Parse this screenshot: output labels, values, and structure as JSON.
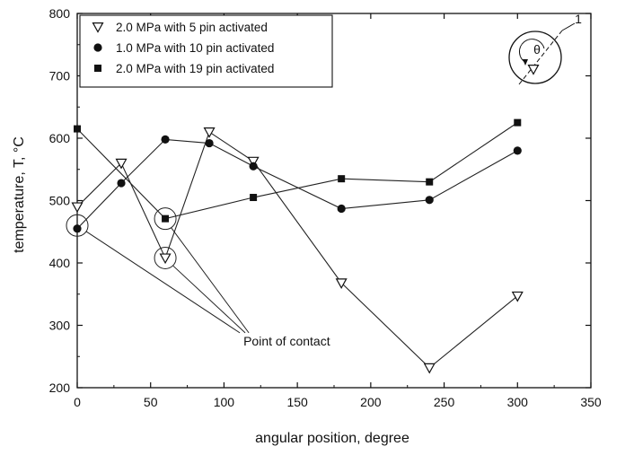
{
  "chart_data": {
    "type": "line",
    "xlabel": "angular position, degree",
    "ylabel": "temperature, T, °C",
    "xlim": [
      0,
      350
    ],
    "ylim": [
      200,
      800
    ],
    "xticks": [
      0,
      50,
      100,
      150,
      200,
      250,
      300,
      350
    ],
    "yticks": [
      200,
      300,
      400,
      500,
      600,
      700,
      800
    ],
    "grid": false,
    "legend_position": "top-left",
    "series": [
      {
        "name": "2.0 MPa with 5 pin activated",
        "marker": "triangle-down-open",
        "x": [
          0,
          30,
          60,
          90,
          120,
          180,
          240,
          300
        ],
        "y": [
          490,
          560,
          408,
          610,
          563,
          368,
          232,
          347
        ]
      },
      {
        "name": "1.0 MPa with 10 pin activated",
        "marker": "circle-filled",
        "x": [
          0,
          30,
          60,
          90,
          120,
          180,
          240,
          300
        ],
        "y": [
          455,
          528,
          598,
          592,
          555,
          487,
          501,
          580
        ]
      },
      {
        "name": "2.0 MPa with 19 pin activated",
        "marker": "square-filled",
        "x": [
          0,
          60,
          120,
          180,
          240,
          300
        ],
        "y": [
          615,
          471,
          505,
          535,
          530,
          625
        ]
      }
    ],
    "annotations": [
      {
        "text": "Point of contact",
        "x": 90,
        "y": 275,
        "points": [
          {
            "x": 0,
            "y": 460
          },
          {
            "x": 60,
            "y": 408
          },
          {
            "x": 60,
            "y": 471
          }
        ]
      },
      {
        "text": "1",
        "kind": "inset",
        "symbol": "θ"
      }
    ]
  }
}
